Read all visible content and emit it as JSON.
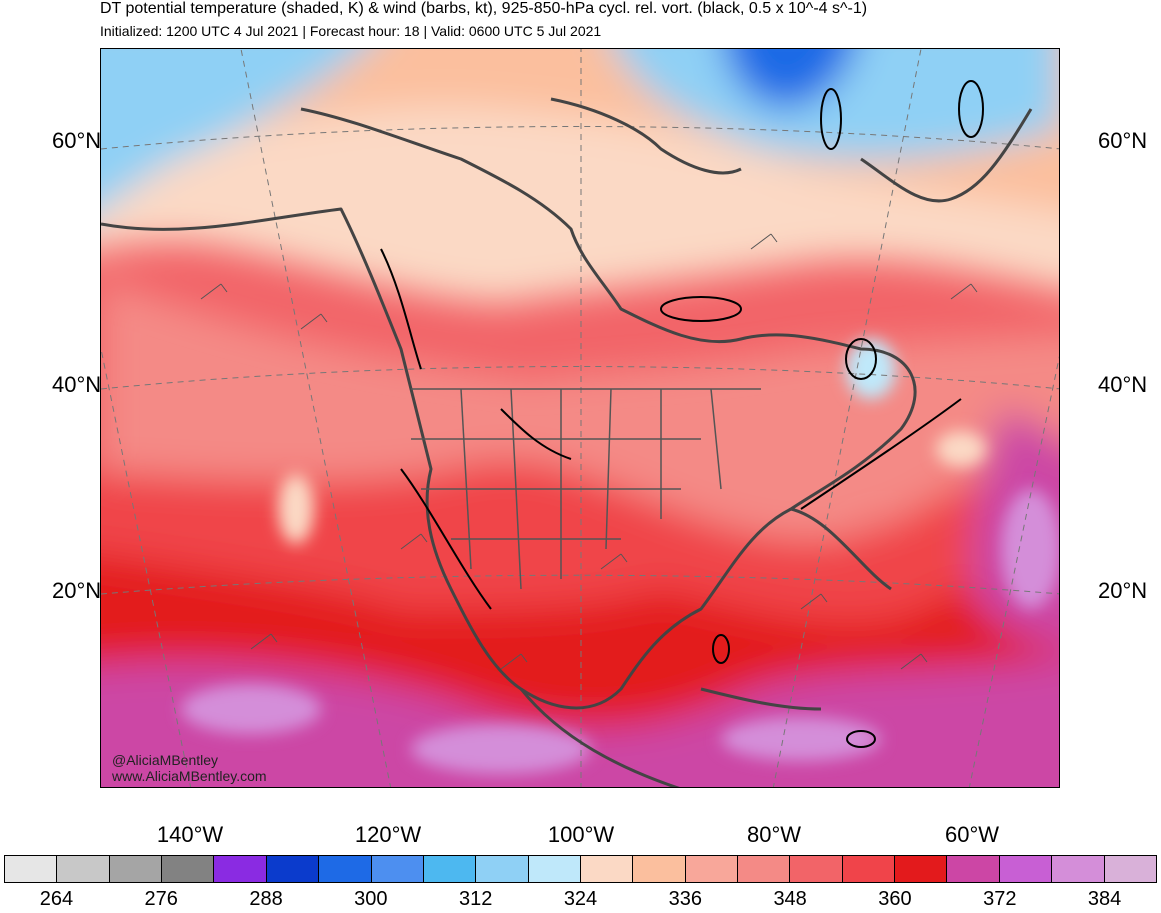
{
  "header": {
    "title": "DT potential temperature (shaded, K) & wind (barbs, kt), 925-850-hPa cycl. rel. vort. (black, 0.5 x 10^-4 s^-1)",
    "subtitle": "Initialized: 1200 UTC 4 Jul 2021 | Forecast hour: 18 | Valid: 0600 UTC 5 Jul 2021"
  },
  "map": {
    "lat_labels": [
      "60°N",
      "40°N",
      "20°N"
    ],
    "lon_labels": [
      "140°W",
      "120°W",
      "100°W",
      "80°W",
      "60°W"
    ]
  },
  "watermark": {
    "handle": "@AliciaMBentley",
    "site": "www.AliciaMBentley.com"
  },
  "colorbar": {
    "labels": [
      "264",
      "276",
      "288",
      "300",
      "312",
      "324",
      "336",
      "348",
      "360",
      "372",
      "384"
    ],
    "colors": [
      "#e6e6e6",
      "#c8c8c8",
      "#a5a5a5",
      "#828282",
      "#8a2be2",
      "#0b3bcc",
      "#1e6ae6",
      "#4d8ff0",
      "#4db8f0",
      "#8fd0f5",
      "#bfe8fa",
      "#fbd9c5",
      "#fbbf9e",
      "#f8a79a",
      "#f48a86",
      "#f26468",
      "#f0444a",
      "#e31a1c",
      "#cc46a5",
      "#c85fd4",
      "#d48ed9",
      "#d9b1d9"
    ]
  }
}
